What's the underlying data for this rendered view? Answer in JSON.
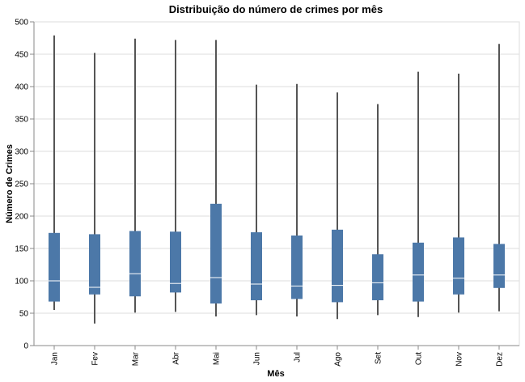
{
  "chart_data": {
    "type": "boxplot",
    "title": "Distribuição do número de crimes por mês",
    "xlabel": "Mês",
    "ylabel": "Número de Crimes",
    "ylim": [
      0,
      500
    ],
    "yticks": [
      0,
      50,
      100,
      150,
      200,
      250,
      300,
      350,
      400,
      450,
      500
    ],
    "grid": true,
    "legend": "none",
    "categories": [
      "Jan",
      "Fev",
      "Mar",
      "Abr",
      "Mai",
      "Jun",
      "Jul",
      "Ago",
      "Set",
      "Out",
      "Nov",
      "Dez"
    ],
    "boxes": [
      {
        "min": 55,
        "q1": 68,
        "median": 100,
        "q3": 174,
        "max": 479
      },
      {
        "min": 34,
        "q1": 79,
        "median": 90,
        "q3": 172,
        "max": 452
      },
      {
        "min": 51,
        "q1": 76,
        "median": 111,
        "q3": 177,
        "max": 474
      },
      {
        "min": 52,
        "q1": 82,
        "median": 96,
        "q3": 176,
        "max": 472
      },
      {
        "min": 45,
        "q1": 65,
        "median": 105,
        "q3": 219,
        "max": 472
      },
      {
        "min": 47,
        "q1": 70,
        "median": 95,
        "q3": 175,
        "max": 403
      },
      {
        "min": 45,
        "q1": 72,
        "median": 92,
        "q3": 170,
        "max": 404
      },
      {
        "min": 41,
        "q1": 67,
        "median": 93,
        "q3": 179,
        "max": 391
      },
      {
        "min": 47,
        "q1": 70,
        "median": 97,
        "q3": 141,
        "max": 373
      },
      {
        "min": 44,
        "q1": 68,
        "median": 109,
        "q3": 159,
        "max": 423
      },
      {
        "min": 51,
        "q1": 79,
        "median": 104,
        "q3": 167,
        "max": 420
      },
      {
        "min": 53,
        "q1": 89,
        "median": 109,
        "q3": 157,
        "max": 466
      }
    ],
    "colors": {
      "box": "#4c78a8",
      "median": "#ffffff",
      "whisker": "#555555",
      "grid": "#dddddd",
      "axis": "#888888"
    }
  }
}
